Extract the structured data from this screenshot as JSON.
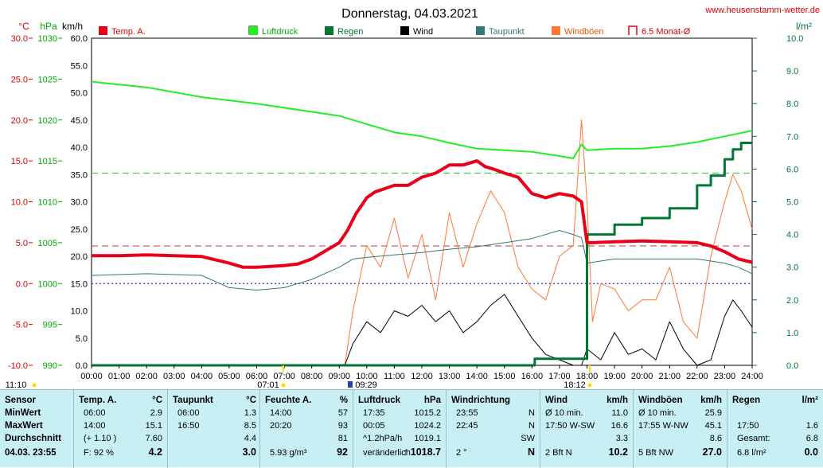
{
  "page": {
    "title": "Donnerstag, 04.03.2021",
    "site": "www.heusenstamm-wetter.de"
  },
  "legend": [
    {
      "label": "Temp. A.",
      "color": "#e8001a",
      "kind": "fill"
    },
    {
      "label": "",
      "color": "#ffffff",
      "kind": "box"
    },
    {
      "label": "Luftdruck",
      "color": "#22ee22",
      "kind": "fill"
    },
    {
      "label": "Regen",
      "color": "#007733",
      "kind": "fill"
    },
    {
      "label": "Wind",
      "color": "#000000",
      "kind": "fill"
    },
    {
      "label": "Taupunkt",
      "color": "#337777",
      "kind": "fill"
    },
    {
      "label": "Windböen",
      "color": "#ff7733",
      "kind": "fill"
    },
    {
      "label": "6.5 Monat-Ø",
      "color": "#e8001a",
      "kind": "bracket"
    }
  ],
  "axes": {
    "temp_unit": "°C",
    "pres_unit": "hPa",
    "wind_unit": "km/h",
    "rain_unit": "l/m²",
    "temp_ticks": [
      "30.0",
      "25.0",
      "20.0",
      "15.0",
      "10.0",
      "5.0",
      "0.0",
      "-5.0",
      "-10.0"
    ],
    "pres_ticks": [
      "1030",
      "1025",
      "1020",
      "1015",
      "1010",
      "1005",
      "1000",
      "995",
      "990"
    ],
    "wind_ticks": [
      "60.0",
      "55.0",
      "50.0",
      "45.0",
      "40.0",
      "35.0",
      "30.0",
      "25.0",
      "20.0",
      "15.0",
      "10.0",
      "5.0",
      "0.0"
    ],
    "rain_ticks": [
      "10.0",
      "9.0",
      "8.0",
      "7.0",
      "6.0",
      "5.0",
      "4.0",
      "3.0",
      "2.0",
      "1.0",
      "0.0"
    ],
    "hour_ticks": [
      "00:00",
      "01:00",
      "02:00",
      "03:00",
      "04:00",
      "05:00",
      "06:00",
      "07:00",
      "08:00",
      "09:00",
      "10:00",
      "11:00",
      "12:00",
      "13:00",
      "14:00",
      "15:00",
      "16:00",
      "17:00",
      "18:00",
      "19:00",
      "20:00",
      "21:00",
      "22:00",
      "23:00",
      "24:00"
    ],
    "markers": [
      "11:10",
      "07:01",
      "09:29",
      "18:12"
    ]
  },
  "chart_data": {
    "type": "line",
    "title": "Donnerstag, 04.03.2021",
    "x_unit": "hour",
    "xlim": [
      0,
      24
    ],
    "axes_ranges": {
      "temp": [
        -10,
        30
      ],
      "pressure": [
        990,
        1030
      ],
      "wind": [
        0,
        60
      ],
      "rain": [
        0,
        10
      ]
    },
    "reference_lines": {
      "temp_avg_6_5_month": 4.6,
      "pressure_ref": 1013.5,
      "zero_temp": 0
    },
    "series": [
      {
        "name": "Temp. A.",
        "unit": "°C",
        "axis": "temp",
        "x": [
          0,
          1,
          2,
          3,
          4,
          5,
          5.5,
          6,
          6.5,
          7,
          7.5,
          8,
          8.5,
          9,
          9.3,
          9.6,
          10,
          10.3,
          11,
          11.5,
          12,
          12.5,
          13,
          13.5,
          14,
          14.3,
          14.6,
          15,
          15.5,
          16,
          16.5,
          17,
          17.5,
          17.8,
          18,
          18.2,
          19,
          20,
          21,
          22,
          22.5,
          23,
          23.5,
          24
        ],
        "y": [
          3.4,
          3.4,
          3.5,
          3.4,
          3.3,
          2.5,
          2.0,
          2.0,
          2.1,
          2.2,
          2.4,
          3.0,
          4.0,
          5.0,
          6.5,
          8.5,
          10.5,
          11.2,
          12.0,
          12.0,
          13.0,
          13.5,
          14.5,
          14.5,
          15.0,
          14.3,
          14.0,
          13.5,
          13.0,
          11.0,
          10.5,
          11.0,
          10.7,
          10.0,
          5.0,
          5.0,
          5.1,
          5.2,
          5.1,
          5.0,
          4.6,
          3.9,
          3.0,
          2.6
        ]
      },
      {
        "name": "Taupunkt",
        "unit": "°C",
        "axis": "temp",
        "x": [
          0,
          2,
          4,
          5,
          6,
          7,
          8,
          9,
          9.5,
          10,
          11,
          12,
          13,
          14,
          15,
          16,
          17,
          17.5,
          17.8,
          18,
          19,
          20,
          21,
          22,
          23,
          23.5,
          24
        ],
        "y": [
          1.0,
          1.2,
          1.0,
          -0.5,
          -0.8,
          -0.5,
          0.5,
          2.0,
          3.0,
          3.2,
          3.5,
          3.8,
          4.2,
          4.5,
          5.0,
          5.5,
          6.5,
          6.0,
          5.6,
          2.5,
          3.0,
          3.0,
          3.0,
          3.0,
          2.5,
          2.0,
          1.2
        ]
      },
      {
        "name": "Luftdruck",
        "unit": "hPa",
        "axis": "pressure",
        "x": [
          0,
          0.5,
          2,
          4,
          6,
          8,
          9,
          10,
          11,
          12,
          13,
          14,
          15,
          16,
          17,
          17.5,
          17.8,
          18,
          19,
          20,
          21,
          22,
          23,
          24
        ],
        "y": [
          1024.7,
          1024.5,
          1024.0,
          1022.8,
          1022.0,
          1021.0,
          1020.5,
          1019.5,
          1018.5,
          1018.0,
          1017.2,
          1016.5,
          1016.3,
          1016.1,
          1015.6,
          1015.3,
          1017.0,
          1016.3,
          1016.5,
          1016.5,
          1016.8,
          1017.3,
          1018.0,
          1018.7
        ]
      },
      {
        "name": "Regen",
        "unit": "l/m²",
        "axis": "rain",
        "x": [
          0,
          16,
          16.1,
          17.8,
          18,
          19,
          20,
          21,
          22,
          22.5,
          23,
          23.3,
          23.6,
          24
        ],
        "y": [
          0,
          0,
          0.2,
          0.2,
          4.0,
          4.3,
          4.5,
          4.8,
          5.5,
          5.8,
          6.3,
          6.6,
          6.8,
          6.8
        ]
      },
      {
        "name": "Wind",
        "unit": "km/h",
        "axis": "wind",
        "x": [
          0,
          9.2,
          9.5,
          10,
          10.5,
          11,
          11.5,
          12,
          12.5,
          13,
          13.5,
          14,
          14.5,
          15,
          15.5,
          16,
          16.5,
          17,
          17.5,
          17.8,
          18,
          18.5,
          19,
          19.5,
          20,
          20.5,
          21,
          21.5,
          22,
          22.5,
          23,
          23.3,
          23.6,
          24
        ],
        "y": [
          0,
          0,
          4,
          8,
          6,
          10,
          9,
          11,
          8,
          10,
          6,
          8,
          11,
          13,
          9,
          5,
          2,
          1,
          0,
          0,
          3,
          1,
          6,
          2,
          3,
          1,
          8,
          3,
          0,
          1,
          9,
          12,
          10,
          7
        ]
      },
      {
        "name": "Windböen",
        "unit": "km/h",
        "axis": "wind",
        "x": [
          0,
          9.2,
          9.5,
          10,
          10.5,
          11,
          11.5,
          12,
          12.5,
          13,
          13.5,
          14,
          14.5,
          15,
          15.5,
          16,
          16.5,
          17,
          17.5,
          17.8,
          18,
          18.2,
          18.5,
          19,
          19.5,
          20,
          20.5,
          21,
          21.5,
          22,
          22.5,
          23,
          23.3,
          23.6,
          24
        ],
        "y": [
          0,
          0,
          10,
          22,
          18,
          27,
          16,
          24,
          12,
          28,
          18,
          26,
          32,
          28,
          18,
          14,
          12,
          20,
          22,
          45,
          30,
          8,
          15,
          14,
          10,
          12,
          12,
          18,
          8,
          5,
          20,
          30,
          35,
          32,
          25
        ]
      }
    ]
  },
  "table": {
    "sensor": {
      "header": "Sensor",
      "rows": [
        "MinWert",
        "MaxWert",
        "Durchschnitt",
        "04.03.  23:55"
      ]
    },
    "temp": {
      "header": "Temp. A.",
      "unit": "°C",
      "rows": [
        [
          "06:00",
          "2.9"
        ],
        [
          "14:00",
          "15.1"
        ],
        [
          "(+ 1.10 )",
          "7.60"
        ],
        [
          "F: 92 %",
          "4.2"
        ]
      ]
    },
    "taupunkt": {
      "header": "Taupunkt",
      "unit": "°C",
      "rows": [
        [
          "06:00",
          "1.3"
        ],
        [
          "16:50",
          "8.5"
        ],
        [
          "",
          "4.4"
        ],
        [
          "",
          "3.0"
        ]
      ]
    },
    "feuchte": {
      "header": "Feuchte A.",
      "unit": "%",
      "rows": [
        [
          "14:00",
          "57"
        ],
        [
          "20:20",
          "93"
        ],
        [
          "",
          "81"
        ],
        [
          "5.93 g/m³",
          "92"
        ]
      ]
    },
    "luftdruck": {
      "header": "Luftdruck",
      "unit": "hPa",
      "rows": [
        [
          "17:35",
          "1015.2"
        ],
        [
          "00:05",
          "1024.2"
        ],
        [
          "^1.2hPa/h",
          "1019.1"
        ],
        [
          "veränderlich",
          "1018.7"
        ]
      ],
      "arrow": "↑"
    },
    "windrichtung": {
      "header": "Windrichtung",
      "rows": [
        [
          "23:55",
          "N"
        ],
        [
          "22:45",
          "N"
        ],
        [
          "",
          "SW"
        ],
        [
          "2 °",
          "N"
        ]
      ]
    },
    "wind": {
      "header": "Wind",
      "unit": "km/h",
      "rows": [
        [
          "Ø 10 min.",
          "11.0"
        ],
        [
          "17:50   W-SW",
          "16.6"
        ],
        [
          "",
          "3.3"
        ],
        [
          "2 Bft N",
          "10.2"
        ]
      ]
    },
    "windboeen": {
      "header": "Windböen",
      "unit": "km/h",
      "rows": [
        [
          "Ø 10 min.",
          "25.9"
        ],
        [
          "17:55   W-NW",
          "45.1"
        ],
        [
          "",
          "8.6"
        ],
        [
          "5 Bft NW",
          "27.0"
        ]
      ]
    },
    "regen": {
      "header": "Regen",
      "unit": "l/m²",
      "rows": [
        [
          "",
          ""
        ],
        [
          "17:50",
          "1.6"
        ],
        [
          "Gesamt:",
          "6.8"
        ],
        [
          "6.8 l/m²",
          "0.0"
        ]
      ]
    }
  },
  "colors": {
    "temp": "#e8001a",
    "pressure": "#22ee22",
    "rain": "#007733",
    "wind": "#000000",
    "dew": "#337777",
    "gust": "#ff7733",
    "ref_temp": "#b04040",
    "ref_pres": "#22cc22",
    "zero": "#0000cc",
    "table_bg": "#c8f0f4"
  }
}
